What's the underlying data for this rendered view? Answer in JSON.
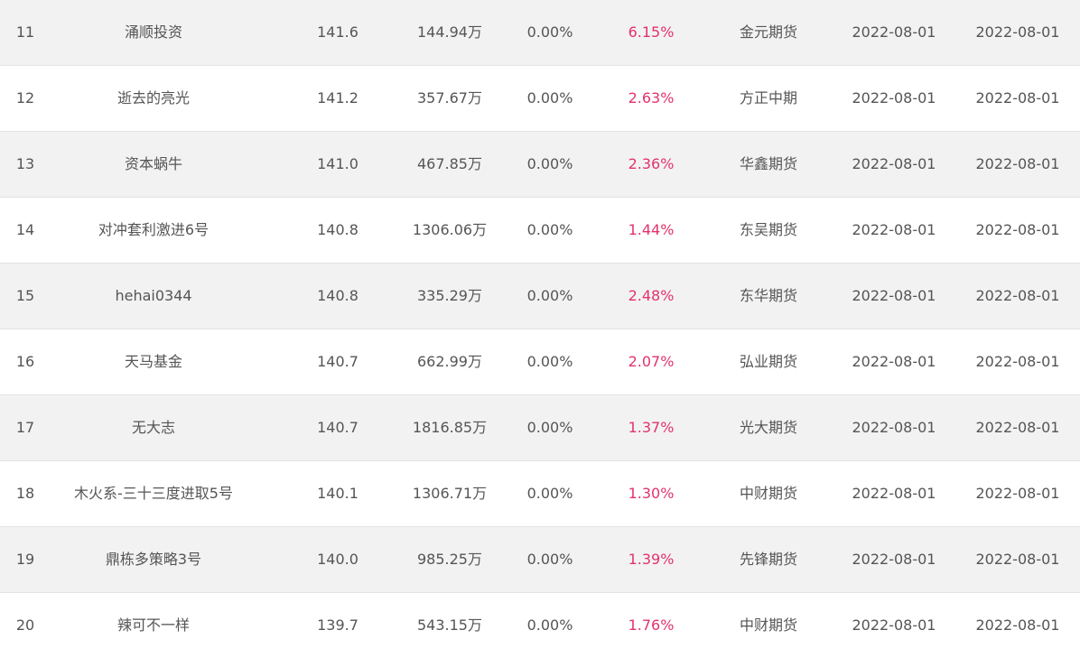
{
  "colors": {
    "row_odd_bg": "#f2f2f2",
    "row_even_bg": "#ffffff",
    "text": "#555555",
    "highlight_return": "#e2336b",
    "divider": "#e3e3e3"
  },
  "rows": [
    {
      "rank": "11",
      "name": "涌顺投资",
      "nav": "141.6",
      "equity": "144.94万",
      "drawdown": "0.00%",
      "return": "6.15%",
      "broker": "金元期货",
      "date1": "2022-08-01",
      "date2": "2022-08-01"
    },
    {
      "rank": "12",
      "name": "逝去的亮光",
      "nav": "141.2",
      "equity": "357.67万",
      "drawdown": "0.00%",
      "return": "2.63%",
      "broker": "方正中期",
      "date1": "2022-08-01",
      "date2": "2022-08-01"
    },
    {
      "rank": "13",
      "name": "资本蜗牛",
      "nav": "141.0",
      "equity": "467.85万",
      "drawdown": "0.00%",
      "return": "2.36%",
      "broker": "华鑫期货",
      "date1": "2022-08-01",
      "date2": "2022-08-01"
    },
    {
      "rank": "14",
      "name": "对冲套利激进6号",
      "nav": "140.8",
      "equity": "1306.06万",
      "drawdown": "0.00%",
      "return": "1.44%",
      "broker": "东吴期货",
      "date1": "2022-08-01",
      "date2": "2022-08-01"
    },
    {
      "rank": "15",
      "name": "hehai0344",
      "nav": "140.8",
      "equity": "335.29万",
      "drawdown": "0.00%",
      "return": "2.48%",
      "broker": "东华期货",
      "date1": "2022-08-01",
      "date2": "2022-08-01"
    },
    {
      "rank": "16",
      "name": "天马基金",
      "nav": "140.7",
      "equity": "662.99万",
      "drawdown": "0.00%",
      "return": "2.07%",
      "broker": "弘业期货",
      "date1": "2022-08-01",
      "date2": "2022-08-01"
    },
    {
      "rank": "17",
      "name": "无大志",
      "nav": "140.7",
      "equity": "1816.85万",
      "drawdown": "0.00%",
      "return": "1.37%",
      "broker": "光大期货",
      "date1": "2022-08-01",
      "date2": "2022-08-01"
    },
    {
      "rank": "18",
      "name": "木火系-三十三度进取5号",
      "nav": "140.1",
      "equity": "1306.71万",
      "drawdown": "0.00%",
      "return": "1.30%",
      "broker": "中财期货",
      "date1": "2022-08-01",
      "date2": "2022-08-01"
    },
    {
      "rank": "19",
      "name": "鼎栋多策略3号",
      "nav": "140.0",
      "equity": "985.25万",
      "drawdown": "0.00%",
      "return": "1.39%",
      "broker": "先锋期货",
      "date1": "2022-08-01",
      "date2": "2022-08-01"
    },
    {
      "rank": "20",
      "name": "辣可不一样",
      "nav": "139.7",
      "equity": "543.15万",
      "drawdown": "0.00%",
      "return": "1.76%",
      "broker": "中财期货",
      "date1": "2022-08-01",
      "date2": "2022-08-01"
    }
  ]
}
